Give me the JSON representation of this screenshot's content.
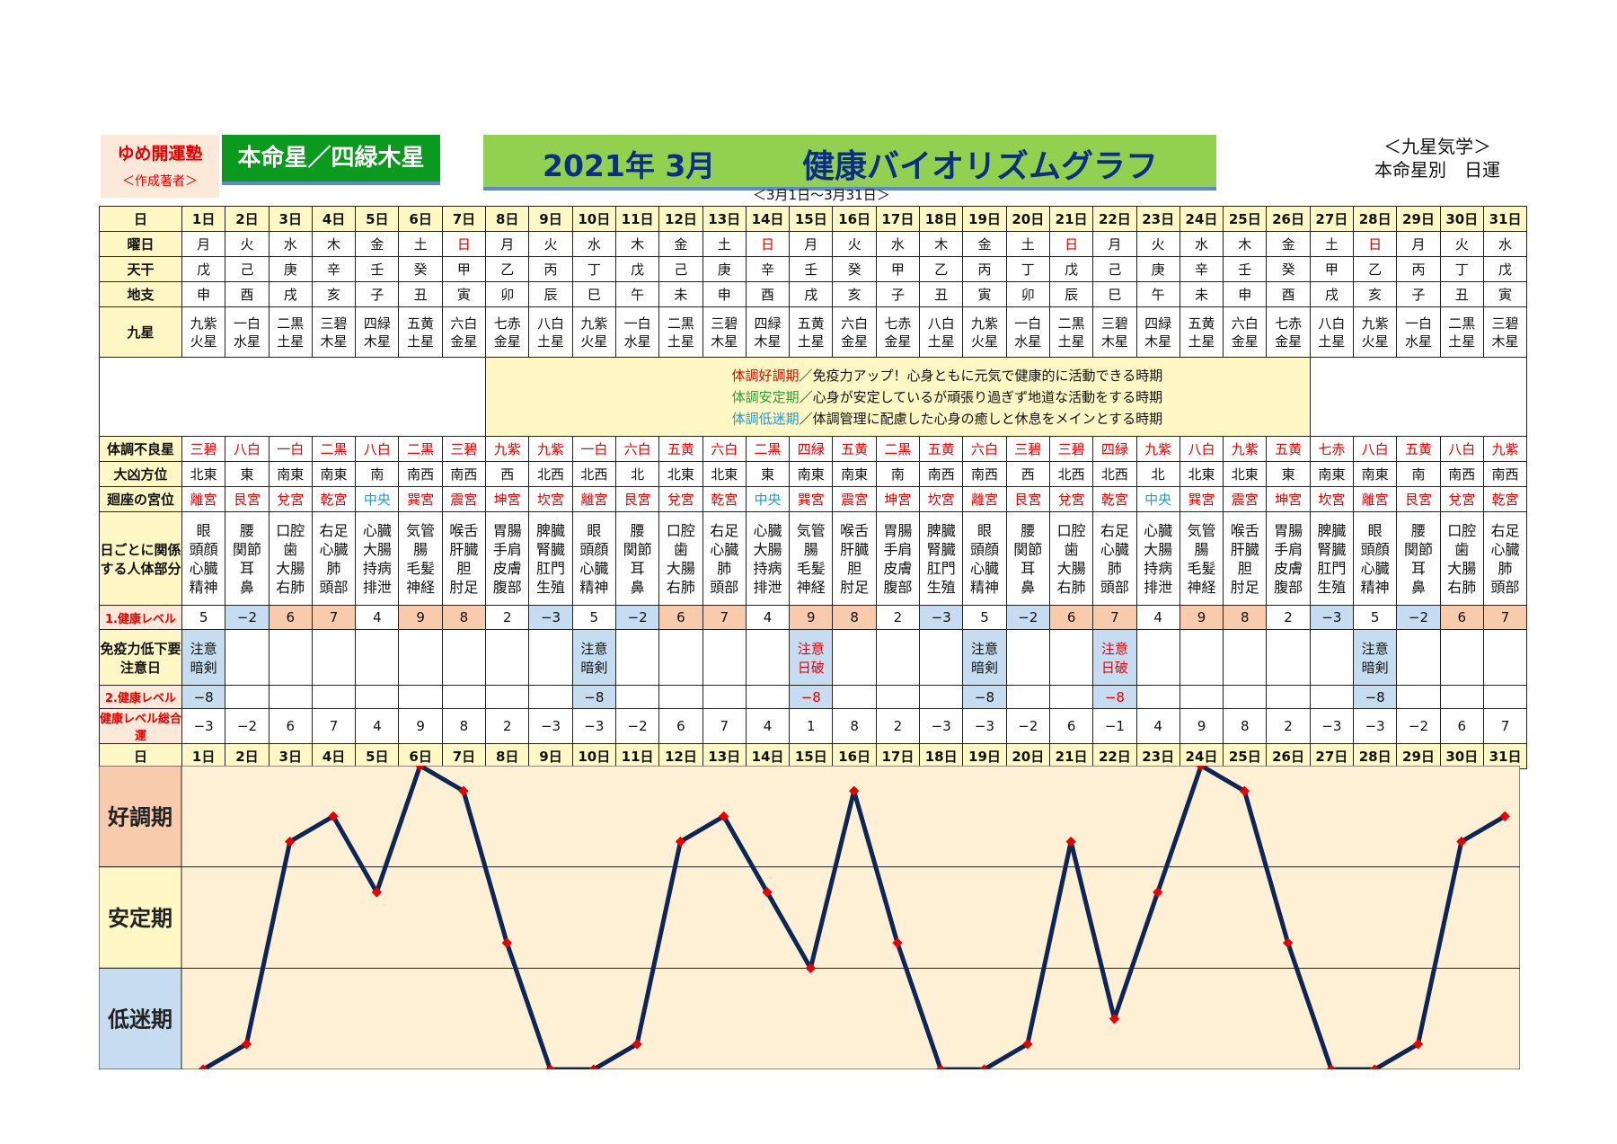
{
  "header": {
    "yume": "ゆめ開運塾",
    "author": "＜作成著者＞",
    "honmeisei": "本命星／四緑木星",
    "title_date": "2021年 3月",
    "title_main": "健康バイオリズムグラフ",
    "range": "＜3月1日～3月31日＞",
    "kyusei_line1": "＜九星気学＞",
    "kyusei_line2": "本命星別　日運"
  },
  "labels": {
    "day": "日",
    "weekday": "曜日",
    "tenkan": "天干",
    "chishi": "地支",
    "kyusei": "九星",
    "furyo": "体調不良星",
    "daikyo": "大凶方位",
    "kaiza": "廻座の宮位",
    "body": "日ごとに関係する人体部分",
    "level1": "1.健康レベル",
    "immune": "免疫力低下要注意日",
    "level2": "2.健康レベル",
    "total": "健康レベル総合運"
  },
  "legend": {
    "l1_key": "体調好調期",
    "l1_rest": "／免疫力アップ！心身ともに元気で健康的に活動できる時期",
    "l2_key": "体調安定期",
    "l2_rest": "／心身が安定しているが頑張り過ぎず地道な活動をする時期",
    "l3_key": "体調低迷期",
    "l3_rest": "／体調管理に配慮した心身の癒しと休息をメインとする時期"
  },
  "bands": {
    "good": "好調期",
    "stable": "安定期",
    "low": "低迷期"
  },
  "days": [
    "1日",
    "2日",
    "3日",
    "4日",
    "5日",
    "6日",
    "7日",
    "8日",
    "9日",
    "10日",
    "11日",
    "12日",
    "13日",
    "14日",
    "15日",
    "16日",
    "17日",
    "18日",
    "19日",
    "20日",
    "21日",
    "22日",
    "23日",
    "24日",
    "25日",
    "26日",
    "27日",
    "28日",
    "29日",
    "30日",
    "31日"
  ],
  "weekdays": [
    "月",
    "火",
    "水",
    "木",
    "金",
    "土",
    "日",
    "月",
    "火",
    "水",
    "木",
    "金",
    "土",
    "日",
    "月",
    "火",
    "水",
    "木",
    "金",
    "土",
    "日",
    "月",
    "火",
    "水",
    "木",
    "金",
    "土",
    "日",
    "月",
    "火",
    "水"
  ],
  "tenkan": [
    "戊",
    "己",
    "庚",
    "辛",
    "壬",
    "癸",
    "甲",
    "乙",
    "丙",
    "丁",
    "戊",
    "己",
    "庚",
    "辛",
    "壬",
    "癸",
    "甲",
    "乙",
    "丙",
    "丁",
    "戊",
    "己",
    "庚",
    "辛",
    "壬",
    "癸",
    "甲",
    "乙",
    "丙",
    "丁",
    "戊"
  ],
  "chishi": [
    "申",
    "酉",
    "戌",
    "亥",
    "子",
    "丑",
    "寅",
    "卯",
    "辰",
    "巳",
    "午",
    "未",
    "申",
    "酉",
    "戌",
    "亥",
    "子",
    "丑",
    "寅",
    "卯",
    "辰",
    "巳",
    "午",
    "未",
    "申",
    "酉",
    "戌",
    "亥",
    "子",
    "丑",
    "寅"
  ],
  "kyusei": [
    [
      "九紫",
      "火星"
    ],
    [
      "一白",
      "水星"
    ],
    [
      "二黒",
      "土星"
    ],
    [
      "三碧",
      "木星"
    ],
    [
      "四緑",
      "木星"
    ],
    [
      "五黄",
      "土星"
    ],
    [
      "六白",
      "金星"
    ],
    [
      "七赤",
      "金星"
    ],
    [
      "八白",
      "土星"
    ],
    [
      "九紫",
      "火星"
    ],
    [
      "一白",
      "水星"
    ],
    [
      "二黒",
      "土星"
    ],
    [
      "三碧",
      "木星"
    ],
    [
      "四緑",
      "木星"
    ],
    [
      "五黄",
      "土星"
    ],
    [
      "六白",
      "金星"
    ],
    [
      "七赤",
      "金星"
    ],
    [
      "八白",
      "土星"
    ],
    [
      "九紫",
      "火星"
    ],
    [
      "一白",
      "水星"
    ],
    [
      "二黒",
      "土星"
    ],
    [
      "三碧",
      "木星"
    ],
    [
      "四緑",
      "木星"
    ],
    [
      "五黄",
      "土星"
    ],
    [
      "六白",
      "金星"
    ],
    [
      "七赤",
      "金星"
    ],
    [
      "八白",
      "土星"
    ],
    [
      "九紫",
      "火星"
    ],
    [
      "一白",
      "水星"
    ],
    [
      "二黒",
      "土星"
    ],
    [
      "三碧",
      "木星"
    ]
  ],
  "furyo": [
    "三碧",
    "八白",
    "一白",
    "二黒",
    "八白",
    "二黒",
    "三碧",
    "九紫",
    "九紫",
    "一白",
    "六白",
    "五黄",
    "六白",
    "二黒",
    "四緑",
    "五黄",
    "二黒",
    "五黄",
    "六白",
    "三碧",
    "三碧",
    "四緑",
    "九紫",
    "八白",
    "九紫",
    "五黄",
    "七赤",
    "八白",
    "五黄",
    "八白",
    "九紫"
  ],
  "daikyo": [
    "北東",
    "東",
    "南東",
    "南東",
    "南",
    "南西",
    "南西",
    "西",
    "北西",
    "北西",
    "北",
    "北東",
    "北東",
    "東",
    "南東",
    "南東",
    "南",
    "南西",
    "南西",
    "西",
    "北西",
    "北西",
    "北",
    "北東",
    "北東",
    "東",
    "南東",
    "南東",
    "南",
    "南西",
    "南西"
  ],
  "kaiza": [
    "離宮",
    "艮宮",
    "兌宮",
    "乾宮",
    "中央",
    "巽宮",
    "震宮",
    "坤宮",
    "坎宮",
    "離宮",
    "艮宮",
    "兌宮",
    "乾宮",
    "中央",
    "巽宮",
    "震宮",
    "坤宮",
    "坎宮",
    "離宮",
    "艮宮",
    "兌宮",
    "乾宮",
    "中央",
    "巽宮",
    "震宮",
    "坤宮",
    "坎宮",
    "離宮",
    "艮宮",
    "兌宮",
    "乾宮"
  ],
  "body": [
    [
      "眼",
      "頭顔",
      "心臓",
      "精神"
    ],
    [
      "腰",
      "関節",
      "耳",
      "鼻"
    ],
    [
      "口腔",
      "歯",
      "大腸",
      "右肺"
    ],
    [
      "右足",
      "心臓",
      "肺",
      "頭部"
    ],
    [
      "心臓",
      "大腸",
      "持病",
      "排泄"
    ],
    [
      "気管",
      "腸",
      "毛髪",
      "神経"
    ],
    [
      "喉舌",
      "肝臓",
      "胆",
      "肘足"
    ],
    [
      "胃腸",
      "手肩",
      "皮膚",
      "腹部"
    ],
    [
      "脾臓",
      "腎臓",
      "肛門",
      "生殖"
    ],
    [
      "眼",
      "頭顔",
      "心臓",
      "精神"
    ],
    [
      "腰",
      "関節",
      "耳",
      "鼻"
    ],
    [
      "口腔",
      "歯",
      "大腸",
      "右肺"
    ],
    [
      "右足",
      "心臓",
      "肺",
      "頭部"
    ],
    [
      "心臓",
      "大腸",
      "持病",
      "排泄"
    ],
    [
      "気管",
      "腸",
      "毛髪",
      "神経"
    ],
    [
      "喉舌",
      "肝臓",
      "胆",
      "肘足"
    ],
    [
      "胃腸",
      "手肩",
      "皮膚",
      "腹部"
    ],
    [
      "脾臓",
      "腎臓",
      "肛門",
      "生殖"
    ],
    [
      "眼",
      "頭顔",
      "心臓",
      "精神"
    ],
    [
      "腰",
      "関節",
      "耳",
      "鼻"
    ],
    [
      "口腔",
      "歯",
      "大腸",
      "右肺"
    ],
    [
      "右足",
      "心臓",
      "肺",
      "頭部"
    ],
    [
      "心臓",
      "大腸",
      "持病",
      "排泄"
    ],
    [
      "気管",
      "腸",
      "毛髪",
      "神経"
    ],
    [
      "喉舌",
      "肝臓",
      "胆",
      "肘足"
    ],
    [
      "胃腸",
      "手肩",
      "皮膚",
      "腹部"
    ],
    [
      "脾臓",
      "腎臓",
      "肛門",
      "生殖"
    ],
    [
      "眼",
      "頭顔",
      "心臓",
      "精神"
    ],
    [
      "腰",
      "関節",
      "耳",
      "鼻"
    ],
    [
      "口腔",
      "歯",
      "大腸",
      "右肺"
    ],
    [
      "右足",
      "心臓",
      "肺",
      "頭部"
    ]
  ],
  "level1": [
    "5",
    "−2",
    "6",
    "7",
    "4",
    "9",
    "8",
    "2",
    "−3",
    "5",
    "−2",
    "6",
    "7",
    "4",
    "9",
    "8",
    "2",
    "−3",
    "5",
    "−2",
    "6",
    "7",
    "4",
    "9",
    "8",
    "2",
    "−3",
    "5",
    "−2",
    "6",
    "7"
  ],
  "immune": [
    [
      "注意",
      "暗剣"
    ],
    [
      "",
      ""
    ],
    [
      "",
      ""
    ],
    [
      "",
      ""
    ],
    [
      "",
      ""
    ],
    [
      "",
      ""
    ],
    [
      "",
      ""
    ],
    [
      "",
      ""
    ],
    [
      "",
      ""
    ],
    [
      "注意",
      "暗剣"
    ],
    [
      "",
      ""
    ],
    [
      "",
      ""
    ],
    [
      "",
      ""
    ],
    [
      "",
      ""
    ],
    [
      "注意",
      "日破"
    ],
    [
      "",
      ""
    ],
    [
      "",
      ""
    ],
    [
      "",
      ""
    ],
    [
      "注意",
      "暗剣"
    ],
    [
      "",
      ""
    ],
    [
      "",
      ""
    ],
    [
      "注意",
      "日破"
    ],
    [
      "",
      ""
    ],
    [
      "",
      ""
    ],
    [
      "",
      ""
    ],
    [
      "",
      ""
    ],
    [
      "",
      ""
    ],
    [
      "注意",
      "暗剣"
    ],
    [
      "",
      ""
    ],
    [
      "",
      ""
    ],
    [
      "",
      ""
    ]
  ],
  "level2": [
    "−8",
    "",
    "",
    "",
    "",
    "",
    "",
    "",
    "",
    "−8",
    "",
    "",
    "",
    "",
    "−8",
    "",
    "",
    "",
    "−8",
    "",
    "",
    "−8",
    "",
    "",
    "",
    "",
    "",
    "−8",
    "",
    "",
    ""
  ],
  "total": [
    "−3",
    "−2",
    "6",
    "7",
    "4",
    "9",
    "8",
    "2",
    "−3",
    "−3",
    "−2",
    "6",
    "7",
    "4",
    "1",
    "8",
    "2",
    "−3",
    "−3",
    "−2",
    "6",
    "−1",
    "4",
    "9",
    "8",
    "2",
    "−3",
    "−3",
    "−2",
    "6",
    "7"
  ],
  "colors": {
    "line": "#0e2557",
    "marker": "#e60000",
    "good_band": "#f8cbad",
    "stable_band": "#fff8c4",
    "low_band": "#c6dcf0",
    "chart_bg": "#fdf0d5"
  },
  "chart_data": {
    "type": "line",
    "title": "",
    "xlabel": "",
    "ylabel": "",
    "categories": [
      "1日",
      "2日",
      "3日",
      "4日",
      "5日",
      "6日",
      "7日",
      "8日",
      "9日",
      "10日",
      "11日",
      "12日",
      "13日",
      "14日",
      "15日",
      "16日",
      "17日",
      "18日",
      "19日",
      "20日",
      "21日",
      "22日",
      "23日",
      "24日",
      "25日",
      "26日",
      "27日",
      "28日",
      "29日",
      "30日",
      "31日"
    ],
    "values": [
      -3,
      -2,
      6,
      7,
      4,
      9,
      8,
      2,
      -3,
      -3,
      -2,
      6,
      7,
      4,
      1,
      8,
      2,
      -3,
      -3,
      -2,
      6,
      -1,
      4,
      9,
      8,
      2,
      -3,
      -3,
      -2,
      6,
      7
    ],
    "ylim": [
      -3,
      9
    ],
    "bands": [
      "好調期",
      "安定期",
      "低迷期"
    ]
  }
}
